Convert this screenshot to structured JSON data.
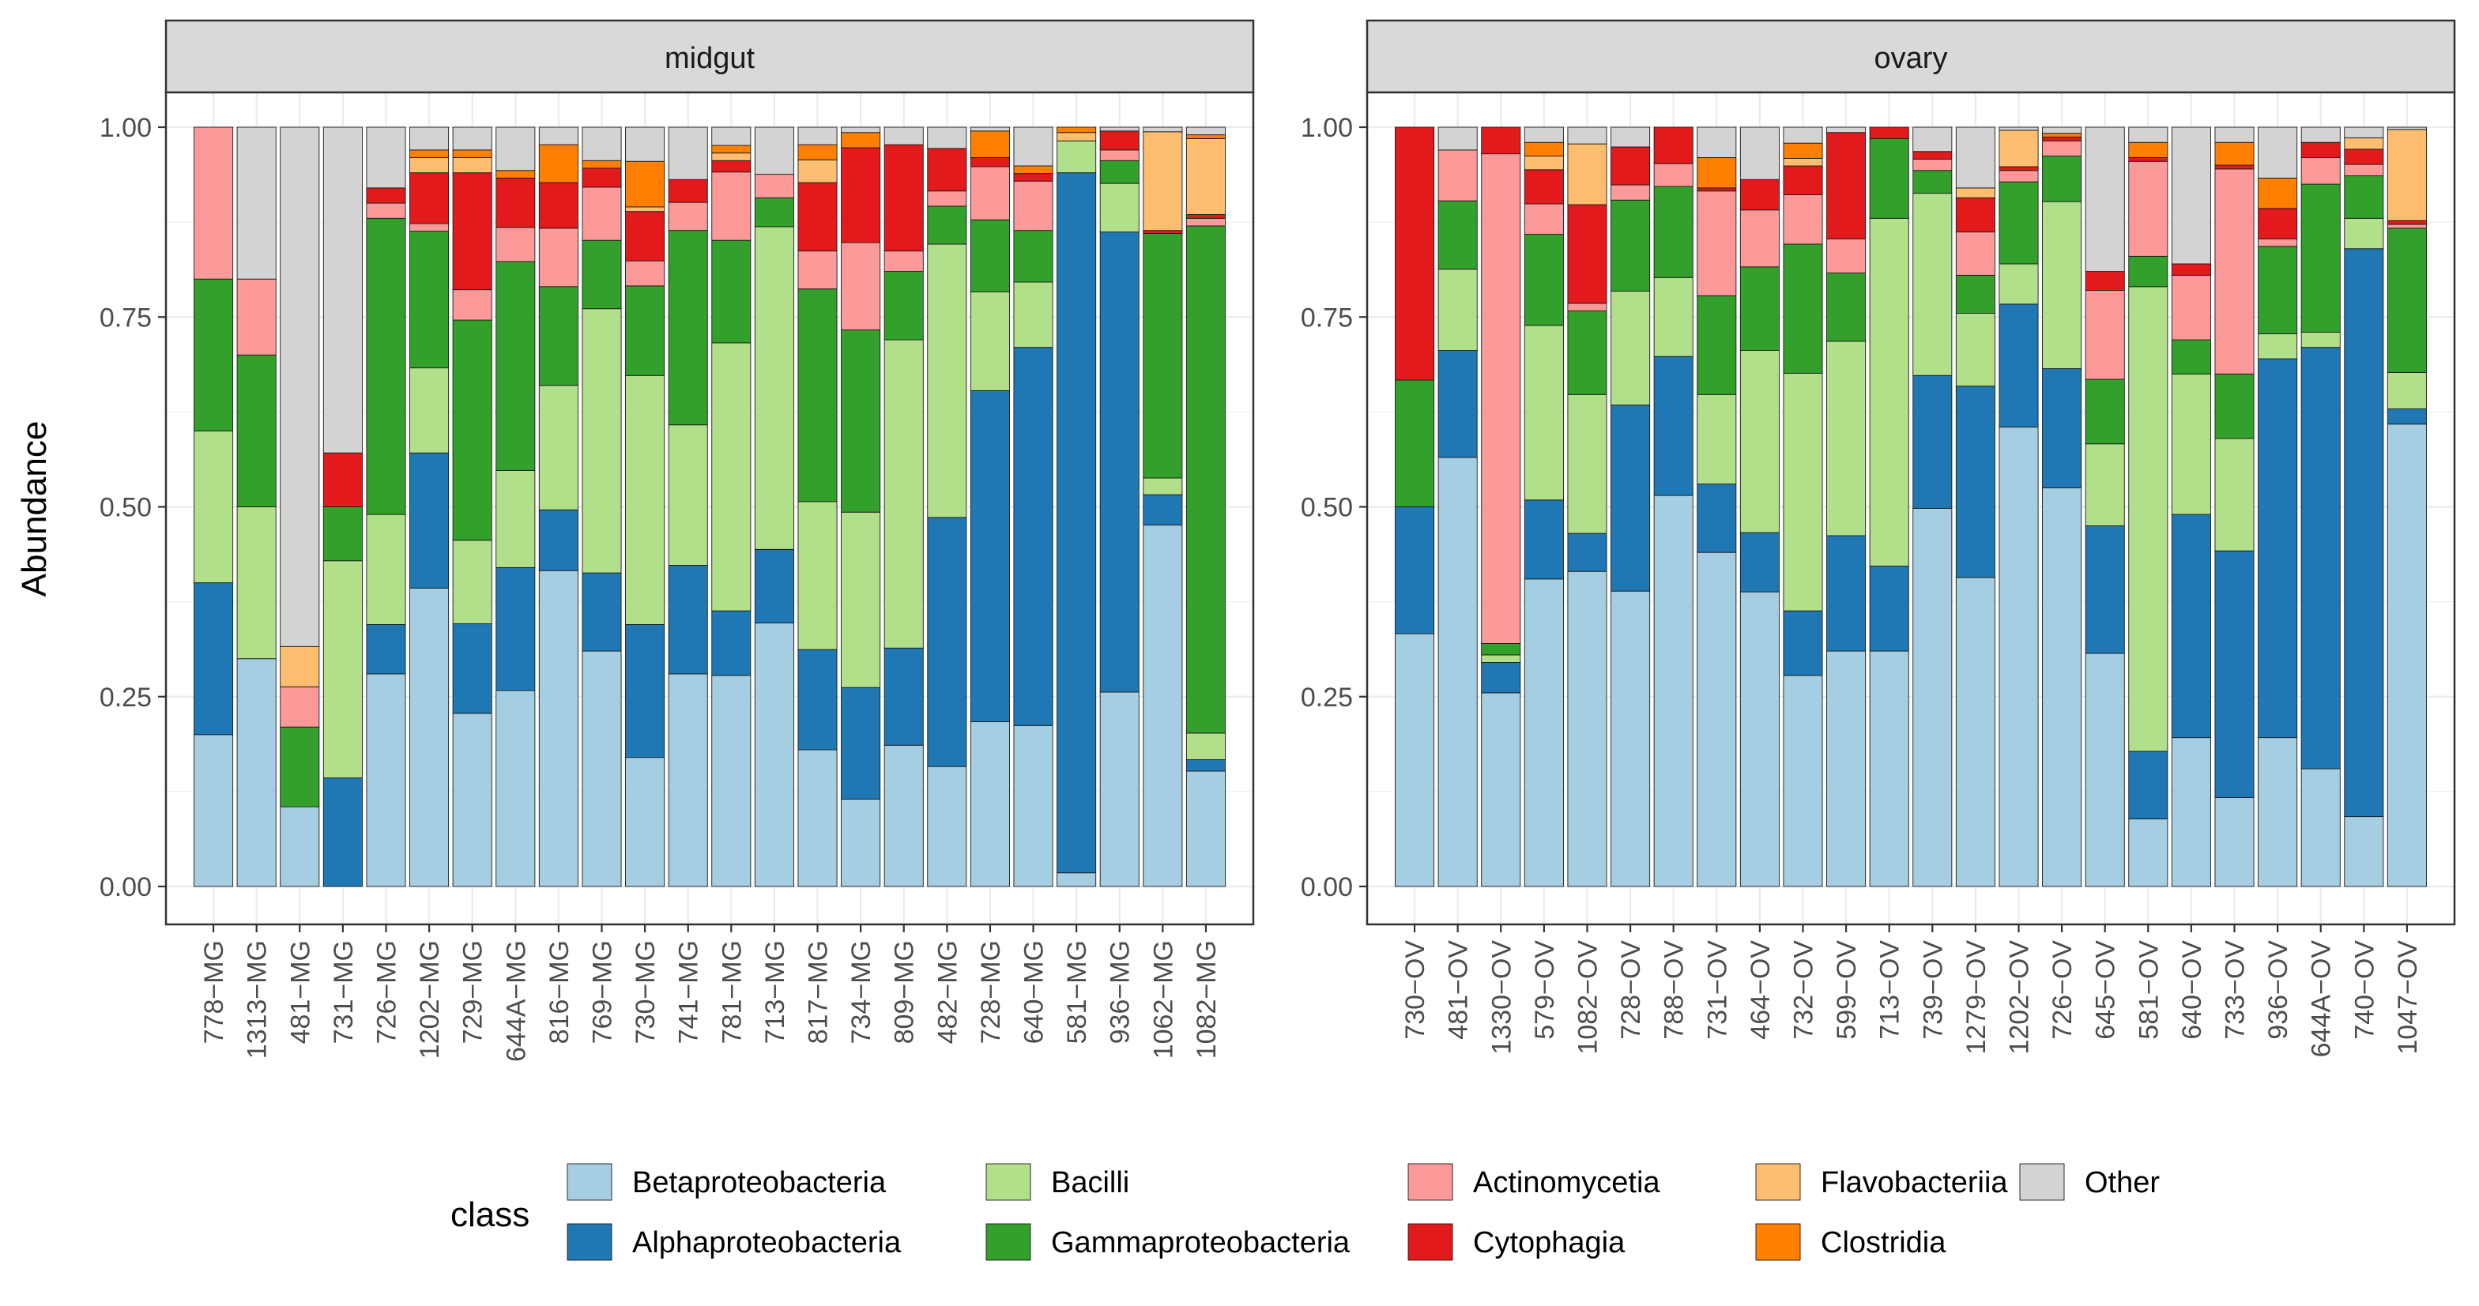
{
  "chart_data": {
    "type": "bar",
    "stacked": true,
    "ylabel": "Abundance",
    "ylim": [
      0,
      1
    ],
    "yticks": [
      "0.00",
      "0.25",
      "0.50",
      "0.75",
      "1.00"
    ],
    "legend_title": "class",
    "legend_position": "bottom",
    "classes": [
      {
        "name": "Betaproteobacteria",
        "color": "#A6CEE3"
      },
      {
        "name": "Alphaproteobacteria",
        "color": "#1F78B4"
      },
      {
        "name": "Bacilli",
        "color": "#B2DF8A"
      },
      {
        "name": "Gammaproteobacteria",
        "color": "#33A02C"
      },
      {
        "name": "Actinomycetia",
        "color": "#FB9A99"
      },
      {
        "name": "Cytophagia",
        "color": "#E31A1C"
      },
      {
        "name": "Flavobacteriia",
        "color": "#FDBF6F"
      },
      {
        "name": "Clostridia",
        "color": "#FF7F00"
      },
      {
        "name": "Other",
        "color": "#D3D3D3"
      }
    ],
    "panels": [
      {
        "title": "midgut",
        "samples": [
          {
            "id": "778−MG",
            "values": [
              0.2,
              0.2,
              0.2,
              0.2,
              0.2,
              0,
              0,
              0,
              0
            ]
          },
          {
            "id": "1313−MG",
            "values": [
              0.3,
              0,
              0.2,
              0.2,
              0.1,
              0,
              0,
              0,
              0.2
            ]
          },
          {
            "id": "481−MG",
            "values": [
              0.105,
              0,
              0,
              0.105,
              0.053,
              0,
              0.053,
              0,
              0.684
            ]
          },
          {
            "id": "731−MG",
            "values": [
              0,
              0.143,
              0.286,
              0.071,
              0,
              0.071,
              0,
              0,
              0.429
            ]
          },
          {
            "id": "726−MG",
            "values": [
              0.28,
              0.065,
              0.145,
              0.39,
              0.02,
              0.02,
              0,
              0,
              0.08
            ]
          },
          {
            "id": "1202−MG",
            "values": [
              0.393,
              0.178,
              0.112,
              0.18,
              0.01,
              0.067,
              0.02,
              0.01,
              0.03
            ]
          },
          {
            "id": "729−MG",
            "values": [
              0.228,
              0.118,
              0.11,
              0.29,
              0.04,
              0.154,
              0.02,
              0.01,
              0.03
            ]
          },
          {
            "id": "644A−MG",
            "values": [
              0.258,
              0.162,
              0.128,
              0.275,
              0.045,
              0.065,
              0,
              0.01,
              0.057
            ]
          },
          {
            "id": "816−MG",
            "values": [
              0.416,
              0.08,
              0.164,
              0.13,
              0.077,
              0.06,
              0,
              0.05,
              0.023
            ]
          },
          {
            "id": "769−MG",
            "values": [
              0.31,
              0.103,
              0.348,
              0.09,
              0.07,
              0.025,
              0,
              0.01,
              0.044
            ]
          },
          {
            "id": "730−MG",
            "values": [
              0.17,
              0.175,
              0.328,
              0.118,
              0.033,
              0.065,
              0.006,
              0.06,
              0.045
            ]
          },
          {
            "id": "741−MG",
            "values": [
              0.28,
              0.143,
              0.185,
              0.256,
              0.037,
              0.03,
              0,
              0,
              0.069
            ]
          },
          {
            "id": "781−MG",
            "values": [
              0.278,
              0.085,
              0.353,
              0.135,
              0.09,
              0.015,
              0.01,
              0.01,
              0.024
            ]
          },
          {
            "id": "713−MG",
            "values": [
              0.347,
              0.097,
              0.425,
              0.038,
              0.031,
              0,
              0,
              0,
              0.062
            ]
          },
          {
            "id": "817−MG",
            "values": [
              0.18,
              0.132,
              0.195,
              0.28,
              0.05,
              0.09,
              0.03,
              0.02,
              0.023
            ]
          },
          {
            "id": "734−MG",
            "values": [
              0.115,
              0.147,
              0.231,
              0.24,
              0.115,
              0.125,
              0,
              0.02,
              0.007
            ]
          },
          {
            "id": "809−MG",
            "values": [
              0.186,
              0.128,
              0.406,
              0.09,
              0.027,
              0.14,
              0,
              0,
              0.023
            ]
          },
          {
            "id": "482−MG",
            "values": [
              0.158,
              0.328,
              0.36,
              0.05,
              0.02,
              0.056,
              0,
              0,
              0.028
            ]
          },
          {
            "id": "728−MG",
            "values": [
              0.217,
              0.436,
              0.13,
              0.095,
              0.07,
              0.012,
              0,
              0.035,
              0.005
            ]
          },
          {
            "id": "640−MG",
            "values": [
              0.212,
              0.498,
              0.086,
              0.068,
              0.065,
              0.01,
              0,
              0.01,
              0.051
            ]
          },
          {
            "id": "581−MG",
            "values": [
              0.018,
              0.922,
              0.042,
              0,
              0,
              0,
              0.011,
              0.007,
              0
            ]
          },
          {
            "id": "936−MG",
            "values": [
              0.256,
              0.606,
              0.064,
              0.03,
              0.014,
              0.025,
              0,
              0,
              0.005
            ]
          },
          {
            "id": "1062−MG",
            "values": [
              0.476,
              0.04,
              0.022,
              0.322,
              0,
              0.004,
              0.13,
              0,
              0.006
            ]
          },
          {
            "id": "1082−MG",
            "values": [
              0.152,
              0.015,
              0.035,
              0.668,
              0.01,
              0.005,
              0.1,
              0.005,
              0.01
            ]
          }
        ]
      },
      {
        "title": "ovary",
        "samples": [
          {
            "id": "730−OV",
            "values": [
              0.333,
              0.167,
              0,
              0.167,
              0,
              0.333,
              0,
              0,
              0
            ]
          },
          {
            "id": "481−OV",
            "values": [
              0.565,
              0.141,
              0.107,
              0.09,
              0.067,
              0,
              0,
              0,
              0.03
            ]
          },
          {
            "id": "1330−OV",
            "values": [
              0.255,
              0.04,
              0.01,
              0.015,
              0.645,
              0.035,
              0,
              0,
              0
            ]
          },
          {
            "id": "579−OV",
            "values": [
              0.405,
              0.104,
              0.23,
              0.12,
              0.04,
              0.045,
              0.018,
              0.018,
              0.02
            ]
          },
          {
            "id": "1082−OV",
            "values": [
              0.415,
              0.05,
              0.183,
              0.11,
              0.01,
              0.13,
              0.08,
              0,
              0.022
            ]
          },
          {
            "id": "728−OV",
            "values": [
              0.389,
              0.245,
              0.15,
              0.12,
              0.02,
              0.05,
              0,
              0,
              0.026
            ]
          },
          {
            "id": "788−OV",
            "values": [
              0.515,
              0.183,
              0.104,
              0.12,
              0.03,
              0.048,
              0,
              0,
              0
            ]
          },
          {
            "id": "731−OV",
            "values": [
              0.44,
              0.09,
              0.118,
              0.13,
              0.138,
              0.004,
              0,
              0.04,
              0.04
            ]
          },
          {
            "id": "464−OV",
            "values": [
              0.388,
              0.078,
              0.24,
              0.11,
              0.075,
              0.04,
              0,
              0,
              0.069
            ]
          },
          {
            "id": "732−OV",
            "values": [
              0.278,
              0.085,
              0.313,
              0.17,
              0.065,
              0.038,
              0.01,
              0.02,
              0.021
            ]
          },
          {
            "id": "599−OV",
            "values": [
              0.31,
              0.152,
              0.256,
              0.09,
              0.045,
              0.14,
              0,
              0,
              0.007
            ]
          },
          {
            "id": "713−OV",
            "values": [
              0.31,
              0.112,
              0.458,
              0.105,
              0,
              0.015,
              0,
              0,
              0
            ]
          },
          {
            "id": "739−OV",
            "values": [
              0.498,
              0.175,
              0.24,
              0.03,
              0.015,
              0.01,
              0,
              0,
              0.032
            ]
          },
          {
            "id": "1279−OV",
            "values": [
              0.407,
              0.252,
              0.096,
              0.05,
              0.057,
              0.045,
              0.013,
              0,
              0.08
            ]
          },
          {
            "id": "1202−OV",
            "values": [
              0.605,
              0.162,
              0.053,
              0.108,
              0.015,
              0.005,
              0.048,
              0,
              0.004
            ]
          },
          {
            "id": "726−OV",
            "values": [
              0.525,
              0.157,
              0.22,
              0.06,
              0.02,
              0.005,
              0,
              0.005,
              0.008
            ]
          },
          {
            "id": "645−OV",
            "values": [
              0.307,
              0.168,
              0.108,
              0.085,
              0.117,
              0.025,
              0,
              0,
              0.19
            ]
          },
          {
            "id": "581−OV",
            "values": [
              0.089,
              0.089,
              0.612,
              0.04,
              0.125,
              0.005,
              0,
              0.02,
              0.02
            ]
          },
          {
            "id": "640−OV",
            "values": [
              0.196,
              0.294,
              0.185,
              0.045,
              0.085,
              0.015,
              0,
              0,
              0.18
            ]
          },
          {
            "id": "733−OV",
            "values": [
              0.117,
              0.325,
              0.148,
              0.085,
              0.27,
              0.005,
              0,
              0.03,
              0.02
            ]
          },
          {
            "id": "936−OV",
            "values": [
              0.196,
              0.499,
              0.033,
              0.115,
              0.01,
              0.04,
              0,
              0.04,
              0.067
            ]
          },
          {
            "id": "644A−OV",
            "values": [
              0.155,
              0.555,
              0.02,
              0.195,
              0.035,
              0.02,
              0,
              0,
              0.02
            ]
          },
          {
            "id": "740−OV",
            "values": [
              0.092,
              0.748,
              0.04,
              0.056,
              0.015,
              0.02,
              0.015,
              0,
              0.014
            ]
          },
          {
            "id": "1047−OV",
            "values": [
              0.609,
              0.02,
              0.048,
              0.19,
              0.005,
              0.005,
              0.12,
              0,
              0.003
            ]
          }
        ]
      }
    ]
  }
}
